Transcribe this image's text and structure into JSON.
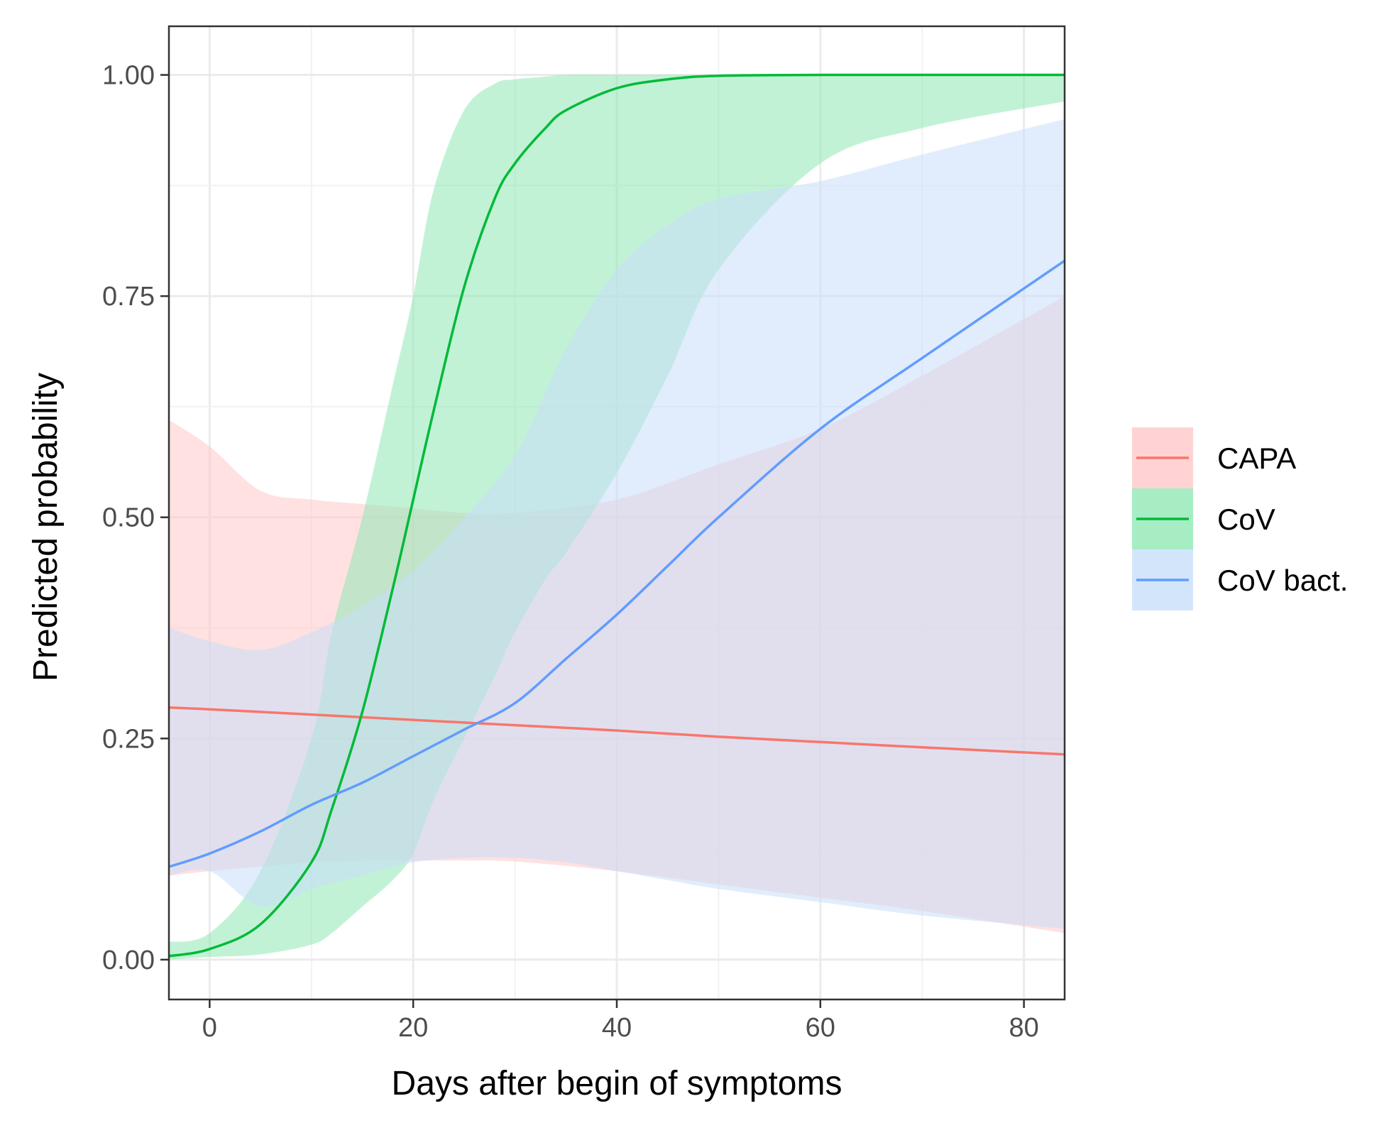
{
  "chart_data": {
    "type": "line",
    "xlabel": "Days after begin of symptoms",
    "ylabel": "Predicted probability",
    "xlim": [
      -4,
      84
    ],
    "ylim": [
      -0.045,
      1.055
    ],
    "x_ticks": [
      0,
      20,
      40,
      60,
      80
    ],
    "x_tick_labels": [
      "0",
      "20",
      "40",
      "60",
      "80"
    ],
    "y_ticks": [
      0,
      0.25,
      0.5,
      0.75,
      1.0
    ],
    "y_tick_labels": [
      "0.00",
      "0.25",
      "0.50",
      "0.75",
      "1.00"
    ],
    "grid": true,
    "legend_position": "right",
    "series": [
      {
        "name": "CAPA",
        "color": "#f8766d",
        "ribbon_color": "#ffc8c8",
        "x": [
          -4,
          0,
          5,
          10,
          15,
          20,
          25,
          30,
          40,
          50,
          60,
          70,
          84
        ],
        "values": [
          0.285,
          0.283,
          0.28,
          0.277,
          0.274,
          0.271,
          0.268,
          0.265,
          0.259,
          0.252,
          0.246,
          0.24,
          0.232
        ],
        "lower": [
          0.095,
          0.1,
          0.105,
          0.11,
          0.112,
          0.112,
          0.112,
          0.111,
          0.1,
          0.085,
          0.07,
          0.055,
          0.03
        ],
        "upper": [
          0.61,
          0.58,
          0.53,
          0.52,
          0.515,
          0.51,
          0.505,
          0.505,
          0.52,
          0.56,
          0.6,
          0.66,
          0.75
        ]
      },
      {
        "name": "CoV",
        "color": "#00ba38",
        "ribbon_color": "#90e8b4",
        "x": [
          -4,
          0,
          5,
          10,
          12,
          15,
          18,
          20,
          22,
          25,
          28,
          30,
          33,
          35,
          40,
          45,
          50,
          60,
          70,
          84
        ],
        "values": [
          0.004,
          0.012,
          0.04,
          0.11,
          0.17,
          0.28,
          0.42,
          0.52,
          0.62,
          0.76,
          0.86,
          0.9,
          0.94,
          0.96,
          0.985,
          0.995,
          0.999,
          1.0,
          1.0,
          1.0
        ],
        "lower": [
          0.0,
          0.003,
          0.006,
          0.017,
          0.03,
          0.06,
          0.09,
          0.12,
          0.18,
          0.25,
          0.32,
          0.37,
          0.43,
          0.46,
          0.55,
          0.66,
          0.78,
          0.9,
          0.94,
          0.97
        ],
        "upper": [
          0.02,
          0.03,
          0.1,
          0.25,
          0.37,
          0.5,
          0.65,
          0.75,
          0.87,
          0.96,
          0.99,
          0.995,
          0.998,
          1.0,
          1.0,
          1.0,
          1.0,
          1.0,
          1.0,
          1.0
        ]
      },
      {
        "name": "CoV bact.",
        "color": "#619cff",
        "ribbon_color": "#c8dffa",
        "x": [
          -4,
          0,
          5,
          10,
          15,
          20,
          25,
          30,
          35,
          40,
          45,
          50,
          60,
          70,
          84
        ],
        "values": [
          0.105,
          0.12,
          0.145,
          0.175,
          0.2,
          0.23,
          0.26,
          0.29,
          0.34,
          0.39,
          0.445,
          0.5,
          0.6,
          0.68,
          0.79
        ],
        "lower": [
          0.095,
          0.1,
          0.06,
          0.08,
          0.095,
          0.11,
          0.115,
          0.115,
          0.11,
          0.1,
          0.09,
          0.08,
          0.065,
          0.05,
          0.035
        ],
        "upper": [
          0.375,
          0.36,
          0.35,
          0.37,
          0.4,
          0.44,
          0.5,
          0.57,
          0.69,
          0.78,
          0.83,
          0.86,
          0.88,
          0.91,
          0.95
        ]
      }
    ]
  }
}
